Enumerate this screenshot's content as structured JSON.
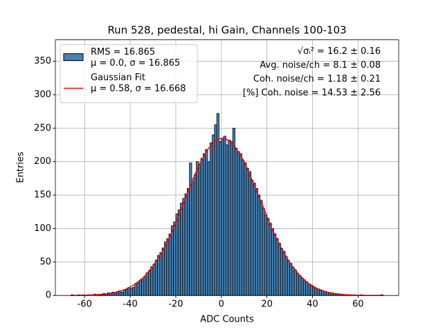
{
  "chart_data": {
    "type": "histogram",
    "title": "Run 528, pedestal, hi Gain, Channels 100-103",
    "xlabel": "ADC Counts",
    "ylabel": "Entries",
    "name": "RMS = 16.865\nμ = 0.0, σ = 16.865",
    "color": "#4682b4",
    "edgecolor": "#000000",
    "bins": [
      -66,
      -65,
      -64,
      -63,
      -62,
      -61,
      -60,
      -59,
      -58,
      -57,
      -56,
      -55,
      -54,
      -53,
      -52,
      -51,
      -50,
      -49,
      -48,
      -47,
      -46,
      -45,
      -44,
      -43,
      -42,
      -41,
      -40,
      -39,
      -38,
      -37,
      -36,
      -35,
      -34,
      -33,
      -32,
      -31,
      -30,
      -29,
      -28,
      -27,
      -26,
      -25,
      -24,
      -23,
      -22,
      -21,
      -20,
      -19,
      -18,
      -17,
      -16,
      -15,
      -14,
      -13,
      -12,
      -11,
      -10,
      -9,
      -8,
      -7,
      -6,
      -5,
      -4,
      -3,
      -2,
      -1,
      0,
      1,
      2,
      3,
      4,
      5,
      6,
      7,
      8,
      9,
      10,
      11,
      12,
      13,
      14,
      15,
      16,
      17,
      18,
      19,
      20,
      21,
      22,
      23,
      24,
      25,
      26,
      27,
      28,
      29,
      30,
      31,
      32,
      33,
      34,
      35,
      36,
      37,
      38,
      39,
      40,
      41,
      42,
      43,
      44,
      45,
      46,
      47,
      48,
      49,
      50,
      51,
      52,
      53,
      54,
      55,
      56,
      57,
      58,
      59,
      60,
      61,
      62,
      63,
      64,
      65,
      66,
      67,
      68,
      69,
      70,
      71
    ],
    "values": [
      1,
      0,
      0,
      1,
      0,
      1,
      0,
      1,
      1,
      0,
      2,
      1,
      2,
      1,
      3,
      2,
      4,
      3,
      5,
      4,
      6,
      7,
      5,
      8,
      9,
      12,
      11,
      12,
      18,
      19,
      22,
      24,
      28,
      34,
      37,
      43,
      47,
      53,
      60,
      64,
      71,
      80,
      85,
      92,
      104,
      110,
      122,
      128,
      138,
      145,
      152,
      160,
      198,
      170,
      180,
      200,
      195,
      205,
      212,
      218,
      200,
      228,
      240,
      255,
      272,
      230,
      235,
      238,
      225,
      232,
      230,
      250,
      220,
      215,
      212,
      202,
      198,
      190,
      185,
      172,
      168,
      160,
      150,
      142,
      130,
      120,
      115,
      108,
      100,
      92,
      85,
      78,
      70,
      66,
      58,
      52,
      48,
      42,
      38,
      33,
      30,
      26,
      23,
      20,
      17,
      15,
      13,
      11,
      10,
      8,
      7,
      6,
      5,
      4,
      4,
      3,
      3,
      2,
      2,
      1,
      1,
      1,
      1,
      0,
      1,
      0,
      0,
      1,
      0,
      0,
      0,
      0,
      0,
      0,
      0,
      0,
      1
    ],
    "fit": {
      "type": "line",
      "name": "Gaussian Fit\nμ = 0.58, σ = 16.668",
      "color": "#ff0000",
      "x": [
        -66,
        -62,
        -58,
        -54,
        -50,
        -46,
        -42,
        -38,
        -34,
        -30,
        -26,
        -22,
        -18,
        -14,
        -10,
        -6,
        -2,
        0,
        2,
        6,
        10,
        14,
        18,
        22,
        26,
        30,
        34,
        38,
        42,
        46,
        50,
        54,
        58,
        62,
        66,
        70
      ],
      "values": [
        0.1,
        0.2,
        0.5,
        1.2,
        2.4,
        4.8,
        9.3,
        16.5,
        27.8,
        43.6,
        65.2,
        92.4,
        125.3,
        160.8,
        193.9,
        218.3,
        232.2,
        234.9,
        234.1,
        222.3,
        200.3,
        168.5,
        135.5,
        101.5,
        72.8,
        49.1,
        31.3,
        18.6,
        10.4,
        5.4,
        2.8,
        1.2,
        0.6,
        0.2,
        0.1,
        0
      ]
    },
    "annotations": [
      "√σᵢ² = 16.2 ± 0.16",
      "Avg. noise/ch = 8.1 ± 0.08",
      "Coh. noise/ch = 1.18 ± 0.21",
      "[%] Coh. noise = 14.53 ± 2.56"
    ],
    "xlim": [
      -72.85,
      77.85
    ],
    "ylim": [
      0,
      382
    ],
    "xticks": [
      -60,
      -40,
      -20,
      0,
      20,
      40,
      60
    ],
    "yticks": [
      0,
      50,
      100,
      150,
      200,
      250,
      300,
      350
    ],
    "grid": true,
    "legend": "upper left"
  }
}
